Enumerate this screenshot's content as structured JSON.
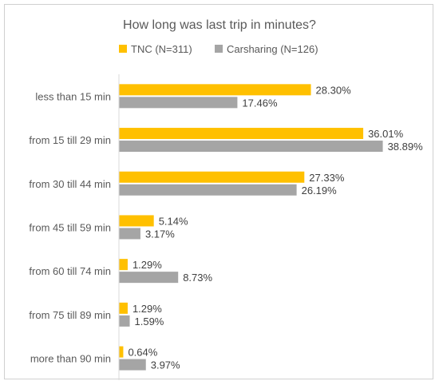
{
  "chart_data": {
    "type": "bar",
    "orientation": "horizontal",
    "title": "How long was last trip in minutes?",
    "categories": [
      "less than 15 min",
      "from 15 till 29 min",
      "from 30 till 44 min",
      "from 45 till 59 min",
      "from 60 till 74 min",
      "from 75 till 89 min",
      "more than 90 min"
    ],
    "series": [
      {
        "name": "TNC (N=311)",
        "color": "#FFC000",
        "values": [
          28.3,
          36.01,
          27.33,
          5.14,
          1.29,
          1.29,
          0.64
        ],
        "labels": [
          "28.30%",
          "36.01%",
          "27.33%",
          "5.14%",
          "1.29%",
          "1.29%",
          "0.64%"
        ]
      },
      {
        "name": "Carsharing (N=126)",
        "color": "#A5A5A5",
        "values": [
          17.46,
          38.89,
          26.19,
          3.17,
          8.73,
          1.59,
          3.97
        ],
        "labels": [
          "17.46%",
          "38.89%",
          "26.19%",
          "3.17%",
          "8.73%",
          "1.59%",
          "3.97%"
        ]
      }
    ],
    "xlim": [
      0,
      45
    ],
    "grid": false,
    "legend_position": "top"
  }
}
